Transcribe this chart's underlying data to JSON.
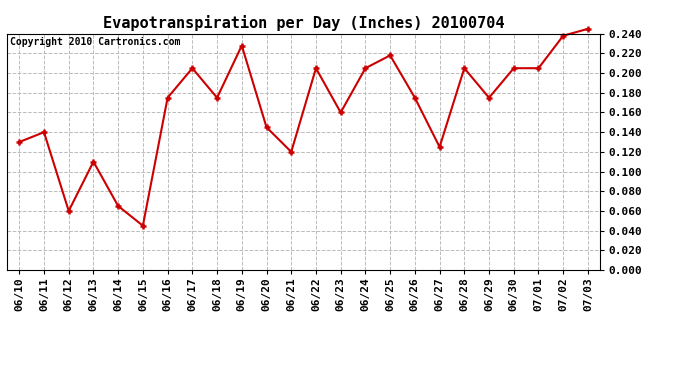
{
  "title": "Evapotranspiration per Day (Inches) 20100704",
  "copyright_text": "Copyright 2010 Cartronics.com",
  "dates": [
    "06/10",
    "06/11",
    "06/12",
    "06/13",
    "06/14",
    "06/15",
    "06/16",
    "06/17",
    "06/18",
    "06/19",
    "06/20",
    "06/21",
    "06/22",
    "06/23",
    "06/24",
    "06/25",
    "06/26",
    "06/27",
    "06/28",
    "06/29",
    "06/30",
    "07/01",
    "07/02",
    "07/03"
  ],
  "values": [
    0.13,
    0.14,
    0.06,
    0.11,
    0.065,
    0.045,
    0.175,
    0.205,
    0.175,
    0.228,
    0.145,
    0.12,
    0.205,
    0.16,
    0.205,
    0.218,
    0.175,
    0.125,
    0.205,
    0.175,
    0.205,
    0.205,
    0.238,
    0.245
  ],
  "line_color": "#cc0000",
  "marker": "+",
  "marker_size": 5,
  "marker_color": "#cc0000",
  "background_color": "#ffffff",
  "grid_color": "#bbbbbb",
  "ylim": [
    0.0,
    0.24
  ],
  "ytick_step": 0.02,
  "title_fontsize": 11,
  "copyright_fontsize": 7,
  "tick_fontsize": 8,
  "line_width": 1.5
}
